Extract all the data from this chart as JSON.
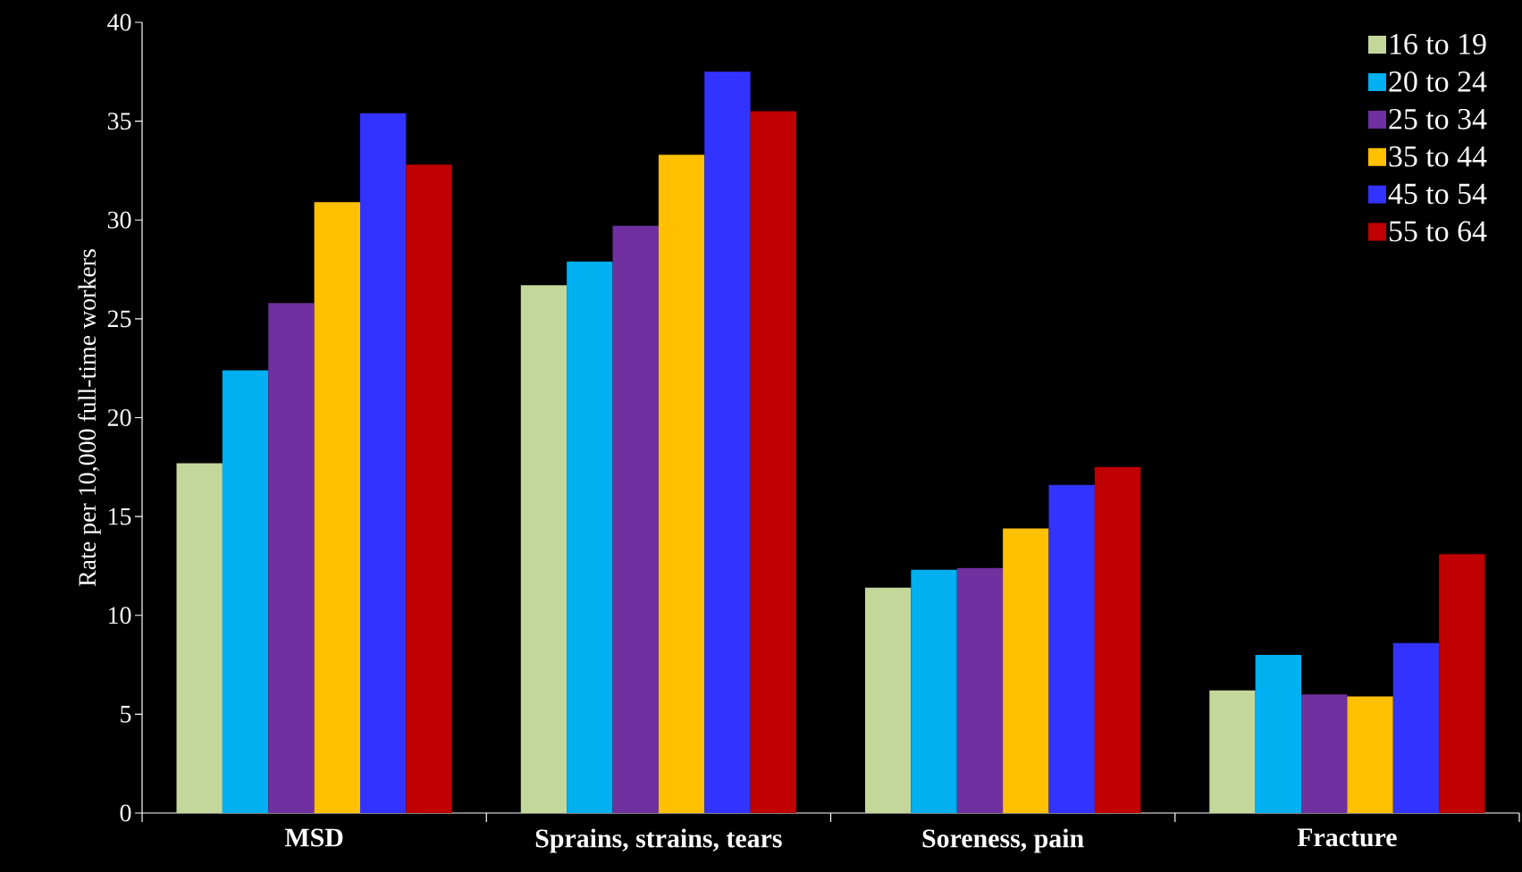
{
  "chart_data": {
    "type": "bar",
    "ylabel": "Rate per 10,000 full-time workers",
    "categories": [
      "MSD",
      "Sprains, strains, tears",
      "Soreness, pain",
      "Fracture"
    ],
    "series": [
      {
        "name": "16 to 19",
        "color": "#c4d79b",
        "values": [
          17.7,
          26.7,
          11.4,
          6.2
        ]
      },
      {
        "name": "20 to 24",
        "color": "#00b0f0",
        "values": [
          22.4,
          27.9,
          12.3,
          8.0
        ]
      },
      {
        "name": "25 to 34",
        "color": "#7030a0",
        "values": [
          25.8,
          29.7,
          12.4,
          6.0
        ]
      },
      {
        "name": "35 to 44",
        "color": "#ffc000",
        "values": [
          30.9,
          33.3,
          14.4,
          5.9
        ]
      },
      {
        "name": "45 to 54",
        "color": "#3333ff",
        "values": [
          35.4,
          37.5,
          16.6,
          8.6
        ]
      },
      {
        "name": "55 to 64",
        "color": "#c00000",
        "values": [
          32.8,
          35.5,
          17.5,
          13.1
        ]
      }
    ],
    "ylim": [
      0,
      40
    ],
    "yticks": [
      0,
      5,
      10,
      15,
      20,
      25,
      30,
      35,
      40
    ],
    "legend": "top right"
  }
}
